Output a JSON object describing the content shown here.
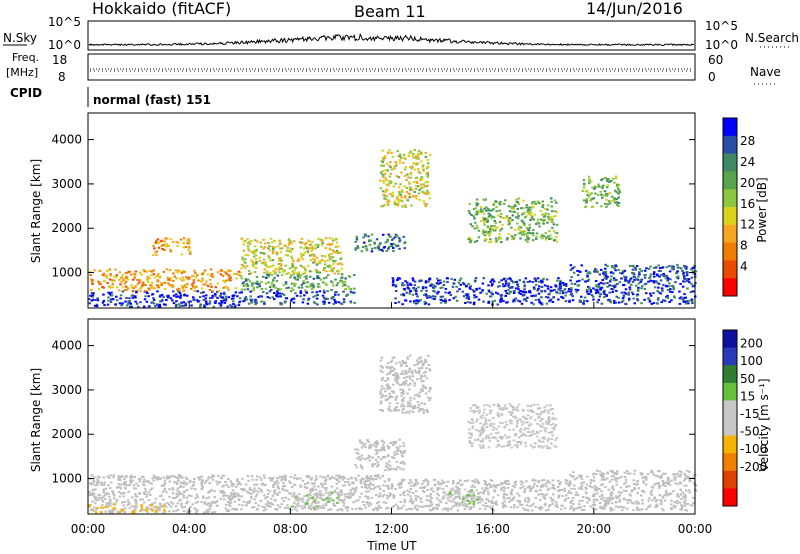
{
  "header": {
    "station": "Hokkaido (fitACF)",
    "beam": "Beam 11",
    "date": "14/Jun/2016"
  },
  "top_panels": {
    "nsky_label": "N.Sky",
    "nsky_ticks": [
      "10^5",
      "10^0"
    ],
    "nsearch_label": "N.Search",
    "freq_label_1": "Freq.",
    "freq_label_2": "[MHz]",
    "freq_ticks": [
      "18",
      "8"
    ],
    "nave_ticks": [
      "60",
      "0"
    ],
    "nave_label": "Nave",
    "cpid_label": "CPID",
    "cpid_value": "normal (fast) 151"
  },
  "colors": {
    "power_scale": [
      "#0000ff",
      "#2a4ea6",
      "#3f8a63",
      "#57a64b",
      "#8dc63f",
      "#d9d21c",
      "#f5a623",
      "#f07d00",
      "#ea4a00",
      "#ff0000"
    ],
    "velocity_scale": [
      "#1010a0",
      "#2a3ab8",
      "#2e7d32",
      "#67c03a",
      "#c8c8c8",
      "#c8c8c8",
      "#f5b400",
      "#f08000",
      "#e04000",
      "#ff0000"
    ],
    "ground_scatter": "#bebebe"
  },
  "chart_data": [
    {
      "type": "heatmap",
      "title": "Power",
      "xlabel": "Time UT",
      "ylabel": "Slant Range [km]",
      "x_ticks": [
        "00:00",
        "04:00",
        "08:00",
        "12:00",
        "16:00",
        "20:00",
        "00:00"
      ],
      "y_ticks": [
        1000,
        2000,
        3000,
        4000
      ],
      "ylim": [
        200,
        4600
      ],
      "colorbar_label": "Power [dB]",
      "colorbar_ticks": [
        28,
        24,
        20,
        16,
        12,
        8,
        4
      ],
      "colorbar_range": [
        0,
        30
      ],
      "regions": [
        {
          "t": [
            0.0,
            6.0
          ],
          "r": [
            250,
            600
          ],
          "value": 28
        },
        {
          "t": [
            0.0,
            6.0
          ],
          "r": [
            600,
            1100
          ],
          "value": 10
        },
        {
          "t": [
            6.0,
            10.5
          ],
          "r": [
            300,
            600
          ],
          "value": 26
        },
        {
          "t": [
            6.0,
            10.5
          ],
          "r": [
            600,
            1000
          ],
          "value": 20
        },
        {
          "t": [
            6.0,
            10.0
          ],
          "r": [
            1000,
            1800
          ],
          "value": 14
        },
        {
          "t": [
            10.5,
            12.5
          ],
          "r": [
            1500,
            1900
          ],
          "value": 24
        },
        {
          "t": [
            11.5,
            13.5
          ],
          "r": [
            2500,
            3800
          ],
          "value": 14
        },
        {
          "t": [
            12.0,
            19.0
          ],
          "r": [
            300,
            900
          ],
          "value": 27
        },
        {
          "t": [
            15.0,
            18.5
          ],
          "r": [
            1700,
            2700
          ],
          "value": 18
        },
        {
          "t": [
            19.0,
            24.0
          ],
          "r": [
            300,
            1200
          ],
          "value": 26
        },
        {
          "t": [
            19.5,
            21.0
          ],
          "r": [
            2500,
            3200
          ],
          "value": 18
        },
        {
          "t": [
            2.5,
            4.0
          ],
          "r": [
            1400,
            1800
          ],
          "value": 10
        }
      ]
    },
    {
      "type": "heatmap",
      "title": "Velocity",
      "xlabel": "Time UT",
      "ylabel": "Slant Range [km]",
      "x_ticks": [
        "00:00",
        "04:00",
        "08:00",
        "12:00",
        "16:00",
        "20:00",
        "00:00"
      ],
      "y_ticks": [
        1000,
        2000,
        3000,
        4000
      ],
      "ylim": [
        200,
        4600
      ],
      "colorbar_label": "Velocity [m s⁻¹]",
      "colorbar_ticks": [
        200,
        100,
        50,
        15,
        -15,
        -50,
        -100,
        -200
      ],
      "colorbar_range": [
        -250,
        250
      ],
      "regions": [
        {
          "t": [
            0.0,
            6.0
          ],
          "r": [
            250,
            1100
          ],
          "value": 0
        },
        {
          "t": [
            6.0,
            12.0
          ],
          "r": [
            300,
            1100
          ],
          "value": 0
        },
        {
          "t": [
            8.0,
            10.0
          ],
          "r": [
            300,
            700
          ],
          "value": 40
        },
        {
          "t": [
            10.5,
            12.5
          ],
          "r": [
            1200,
            1900
          ],
          "value": 0
        },
        {
          "t": [
            11.5,
            13.5
          ],
          "r": [
            2500,
            3800
          ],
          "value": 0
        },
        {
          "t": [
            12.0,
            19.0
          ],
          "r": [
            300,
            1000
          ],
          "value": 0
        },
        {
          "t": [
            14.0,
            15.5
          ],
          "r": [
            400,
            800
          ],
          "value": 40
        },
        {
          "t": [
            15.0,
            18.5
          ],
          "r": [
            1700,
            2700
          ],
          "value": 30
        },
        {
          "t": [
            19.0,
            24.0
          ],
          "r": [
            300,
            1200
          ],
          "value": 0
        },
        {
          "t": [
            0.0,
            3.0
          ],
          "r": [
            250,
            450
          ],
          "value": -60
        }
      ]
    }
  ]
}
